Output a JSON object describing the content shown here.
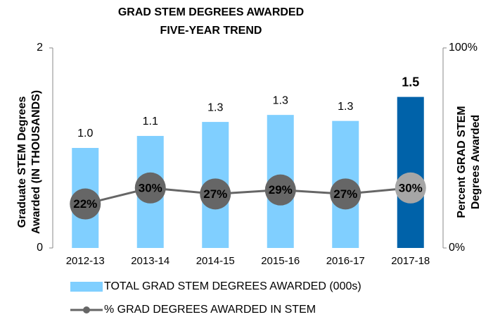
{
  "chart_data": {
    "type": "bar-line",
    "title": "GRAD STEM DEGREES AWARDED",
    "subtitle": "FIVE-YEAR TREND",
    "ylabel": [
      "Graduate STEM Degrees",
      "Awarded (IN THOUSANDS)"
    ],
    "y2label": [
      "Percent GRAD STEM",
      "Degrees Awarded"
    ],
    "categories": [
      "2012-13",
      "2013-14",
      "2014-15",
      "2015-16",
      "2016-17",
      "2017-18"
    ],
    "ylim": [
      0,
      2
    ],
    "yticks": [
      0,
      2
    ],
    "y2lim": [
      0,
      100
    ],
    "y2ticks": [
      {
        "value": 0,
        "label": "0%"
      },
      {
        "value": 100,
        "label": "100%"
      }
    ],
    "series": [
      {
        "name": "TOTAL GRAD STEM DEGREES AWARDED (000s)",
        "type": "bar",
        "colors": [
          "#80cfff",
          "#80cfff",
          "#80cfff",
          "#80cfff",
          "#80cfff",
          "#0062a9"
        ],
        "values": [
          1.0,
          1.12,
          1.26,
          1.33,
          1.27,
          1.51
        ],
        "value_labels": [
          "1.0",
          "1.1",
          "1.3",
          "1.3",
          "1.3",
          "1.5"
        ]
      },
      {
        "name": "% GRAD DEGREES AWARDED IN STEM",
        "type": "line",
        "axis": "y2",
        "color": "#666666",
        "colors": [
          "#666666",
          "#666666",
          "#666666",
          "#666666",
          "#666666",
          "#a6a6a6"
        ],
        "values": [
          22,
          30,
          27,
          29,
          27,
          30
        ],
        "value_labels": [
          "22%",
          "30%",
          "27%",
          "29%",
          "27%",
          "30%"
        ]
      }
    ]
  }
}
